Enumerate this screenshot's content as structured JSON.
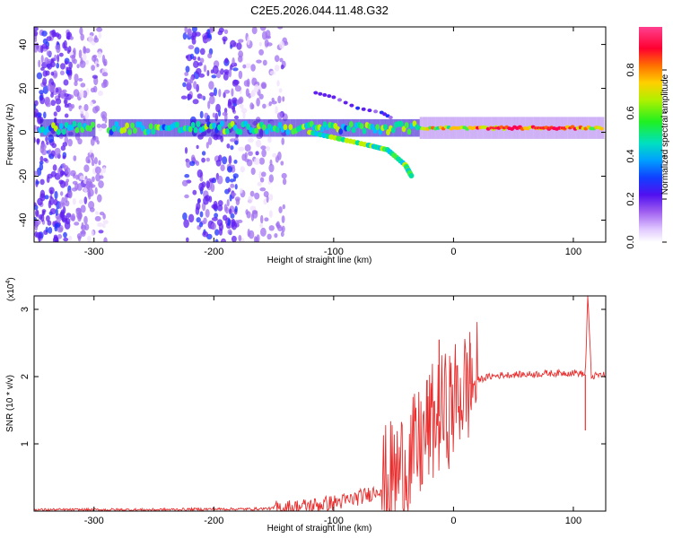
{
  "title": "C2E5.2026.044.11.48.G32",
  "chart_data": [
    {
      "type": "heatmap",
      "xlabel": "Height of straight line (km)",
      "ylabel": "Frequency (Hz)",
      "xlim": [
        -350,
        127
      ],
      "ylim": [
        -50,
        48
      ],
      "xticks": [
        -300,
        -200,
        -100,
        0,
        100
      ],
      "xtick_labels": [
        "-300",
        "-200",
        "-100",
        "0",
        "100"
      ],
      "yticks": [
        -40,
        -20,
        0,
        20,
        40
      ],
      "ytick_labels": [
        "-40",
        "-20",
        "0",
        "20",
        "40"
      ],
      "colorbar": {
        "label": "Normalized spectral amplitude",
        "range": [
          0,
          1
        ],
        "ticks": [
          0.0,
          0.2,
          0.4,
          0.6,
          0.8
        ],
        "tick_labels": [
          "0.0",
          "0.2",
          "0.4",
          "0.6",
          "0.8"
        ],
        "colors": [
          "#f0e0ff",
          "#a070f0",
          "#6020f0",
          "#2030ff",
          "#00c0ff",
          "#00e0a0",
          "#40f040",
          "#c0f000",
          "#ffc000",
          "#ff6000",
          "#ff0050",
          "#ff4090"
        ]
      },
      "features": {
        "noise_band_regions_km": [
          [
            -350,
            -320
          ],
          [
            -320,
            -290
          ],
          [
            -225,
            -180
          ],
          [
            -180,
            -140
          ]
        ],
        "main_band_freq_hz": 2,
        "diverging_branch": {
          "x_km": [
            -120,
            -95,
            -70,
            -55,
            -40,
            -35
          ],
          "y_hz": [
            0,
            -3,
            -6,
            -8,
            -15,
            -20
          ]
        },
        "upper_branch": {
          "x_km": [
            -115,
            -100,
            -80,
            -60,
            -50
          ],
          "y_hz": [
            18,
            16,
            11,
            9,
            6
          ]
        },
        "strong_peak_range_km": [
          20,
          110
        ]
      }
    },
    {
      "type": "line",
      "xlabel": "Height of straight line (km)",
      "ylabel": "SNR (10 * v/v)",
      "y_multiplier_label": "(x10",
      "y_multiplier_exp": "4",
      "y_multiplier_close": ")",
      "xlim": [
        -350,
        127
      ],
      "ylim": [
        0,
        3.2
      ],
      "xticks": [
        -300,
        -200,
        -100,
        0,
        100
      ],
      "xtick_labels": [
        "-300",
        "-200",
        "-100",
        "0",
        "100"
      ],
      "yticks": [
        1,
        2,
        3
      ],
      "ytick_labels": [
        "1",
        "2",
        "3"
      ],
      "line_color": "#e83030",
      "series": [
        {
          "name": "SNR",
          "x": [
            -350,
            -300,
            -250,
            -200,
            -170,
            -150,
            -130,
            -110,
            -90,
            -70,
            -60,
            -50,
            -40,
            -30,
            -25,
            -20,
            -15,
            -10,
            -5,
            0,
            5,
            10,
            15,
            20,
            30,
            40,
            50,
            60,
            70,
            80,
            90,
            100,
            105,
            110,
            112,
            115,
            120,
            127
          ],
          "y": [
            0.02,
            0.02,
            0.02,
            0.03,
            0.03,
            0.04,
            0.06,
            0.1,
            0.15,
            0.25,
            0.35,
            0.5,
            0.7,
            0.9,
            1.05,
            1.25,
            1.35,
            1.45,
            1.5,
            1.6,
            1.75,
            1.85,
            1.9,
            1.95,
            2.0,
            2.02,
            2.03,
            2.03,
            2.04,
            2.05,
            2.05,
            2.06,
            2.05,
            2.03,
            3.2,
            2.0,
            2.02,
            2.02
          ]
        }
      ],
      "spikes": [
        {
          "x": -12,
          "y": 2.55
        },
        {
          "x": 14,
          "y": 2.5
        },
        {
          "x": -22,
          "y": 1.95
        },
        {
          "x": 112,
          "y": 3.2
        },
        {
          "x": 110,
          "y": 1.2
        }
      ]
    }
  ]
}
